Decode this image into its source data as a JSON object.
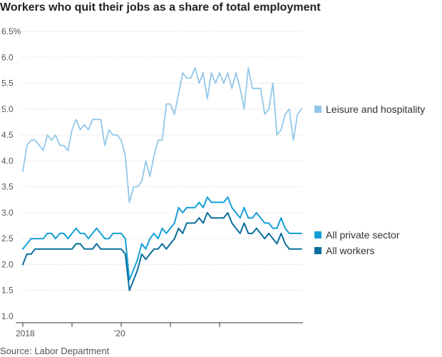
{
  "chart_data": {
    "type": "line",
    "title": "Workers who quit their jobs as a share of total employment",
    "source": "Source: Labor Department",
    "xlabel": "",
    "ylabel": "",
    "ylim": [
      1.0,
      6.5
    ],
    "y_ticks": [
      {
        "value": 6.5,
        "label": "6.5%"
      },
      {
        "value": 6.0,
        "label": "6.0"
      },
      {
        "value": 5.5,
        "label": "5.5"
      },
      {
        "value": 5.0,
        "label": "5.0"
      },
      {
        "value": 4.5,
        "label": "4.5"
      },
      {
        "value": 4.0,
        "label": "4.0"
      },
      {
        "value": 3.5,
        "label": "3.5"
      },
      {
        "value": 3.0,
        "label": "3.0"
      },
      {
        "value": 2.5,
        "label": "2.5"
      },
      {
        "value": 2.0,
        "label": "2.0"
      },
      {
        "value": 1.5,
        "label": "1.5"
      },
      {
        "value": 1.0,
        "label": "1.0"
      }
    ],
    "x_start": "2018-01",
    "x_ticks": [
      {
        "month": "2018-01",
        "label": "2018"
      },
      {
        "month": "2019-01",
        "label": ""
      },
      {
        "month": "2020-01",
        "label": "'20"
      },
      {
        "month": "2021-01",
        "label": ""
      },
      {
        "month": "2022-01",
        "label": ""
      }
    ],
    "grid": true,
    "legend": "right",
    "series": [
      {
        "name": "Leisure and hospitality",
        "color": "#93c7e8",
        "values": [
          3.8,
          4.3,
          4.4,
          4.4,
          4.3,
          4.2,
          4.5,
          4.4,
          4.5,
          4.3,
          4.3,
          4.2,
          4.6,
          4.8,
          4.6,
          4.7,
          4.6,
          4.8,
          4.8,
          4.8,
          4.3,
          4.6,
          4.5,
          4.5,
          4.4,
          4.1,
          3.2,
          3.5,
          3.5,
          3.6,
          4.0,
          3.7,
          4.1,
          4.4,
          4.4,
          5.1,
          5.1,
          4.9,
          5.3,
          5.7,
          5.6,
          5.6,
          5.8,
          5.5,
          5.7,
          5.2,
          5.7,
          5.5,
          5.7,
          5.5,
          5.7,
          5.4,
          5.7,
          5.4,
          5.0,
          5.8,
          5.4,
          5.4,
          5.4,
          4.9,
          5.0,
          5.5,
          4.5,
          4.6,
          4.9,
          5.0,
          4.4,
          4.9,
          5.0
        ]
      },
      {
        "name": "All private sector",
        "color": "#159fd6",
        "values": [
          2.3,
          2.4,
          2.5,
          2.5,
          2.5,
          2.5,
          2.6,
          2.6,
          2.5,
          2.6,
          2.6,
          2.5,
          2.6,
          2.7,
          2.6,
          2.6,
          2.5,
          2.6,
          2.7,
          2.6,
          2.5,
          2.5,
          2.6,
          2.6,
          2.6,
          2.5,
          1.7,
          1.9,
          2.1,
          2.4,
          2.3,
          2.5,
          2.6,
          2.5,
          2.7,
          2.6,
          2.7,
          2.8,
          3.1,
          3.0,
          3.1,
          3.1,
          3.1,
          3.2,
          3.1,
          3.3,
          3.2,
          3.2,
          3.2,
          3.2,
          3.3,
          3.1,
          3.0,
          2.9,
          3.1,
          2.9,
          2.9,
          3.0,
          2.9,
          2.8,
          2.8,
          2.7,
          2.7,
          2.9,
          2.7,
          2.6,
          2.6,
          2.6,
          2.6
        ]
      },
      {
        "name": "All workers",
        "color": "#0a6f9c",
        "values": [
          2.0,
          2.2,
          2.2,
          2.3,
          2.3,
          2.3,
          2.3,
          2.3,
          2.3,
          2.3,
          2.3,
          2.3,
          2.3,
          2.4,
          2.4,
          2.3,
          2.3,
          2.3,
          2.4,
          2.3,
          2.3,
          2.3,
          2.3,
          2.3,
          2.3,
          2.2,
          1.5,
          1.7,
          1.9,
          2.2,
          2.1,
          2.2,
          2.3,
          2.3,
          2.4,
          2.3,
          2.4,
          2.5,
          2.7,
          2.6,
          2.8,
          2.8,
          2.8,
          2.9,
          2.8,
          3.0,
          2.9,
          2.9,
          2.9,
          2.9,
          3.0,
          2.8,
          2.7,
          2.6,
          2.8,
          2.6,
          2.6,
          2.7,
          2.6,
          2.5,
          2.6,
          2.5,
          2.4,
          2.6,
          2.4,
          2.3,
          2.3,
          2.3,
          2.3
        ]
      }
    ]
  }
}
